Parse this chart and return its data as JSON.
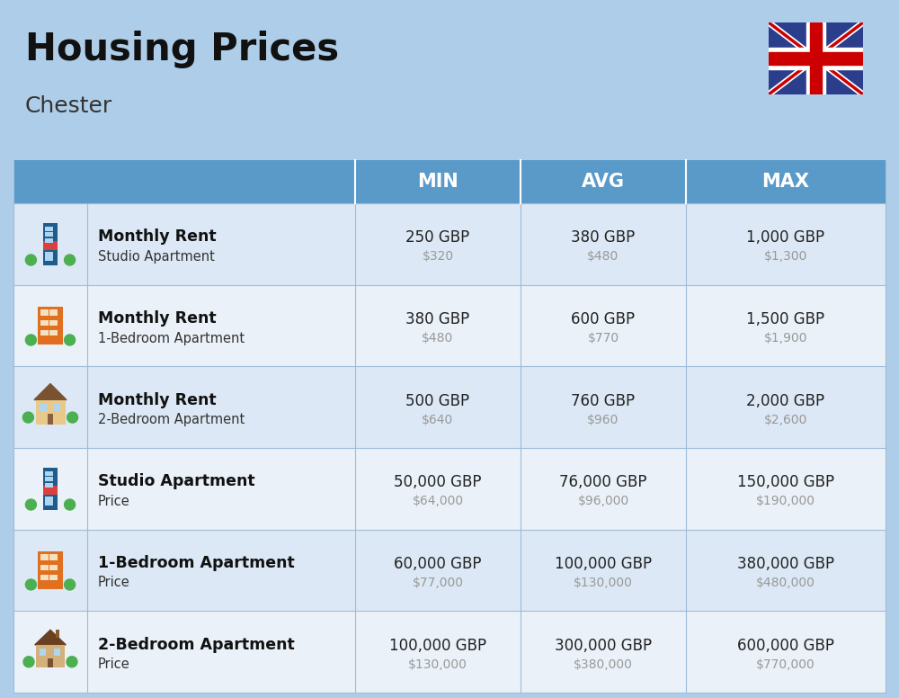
{
  "title": "Housing Prices",
  "subtitle": "Chester",
  "bg_color": "#aecde8",
  "header_bg": "#5a9ac9",
  "col_headers": [
    "MIN",
    "AVG",
    "MAX"
  ],
  "rows": [
    {
      "bold": "Monthly Rent",
      "normal": "Studio Apartment",
      "min_gbp": "250 GBP",
      "min_usd": "$320",
      "avg_gbp": "380 GBP",
      "avg_usd": "$480",
      "max_gbp": "1,000 GBP",
      "max_usd": "$1,300",
      "icon_type": "blue_tower"
    },
    {
      "bold": "Monthly Rent",
      "normal": "1-Bedroom Apartment",
      "min_gbp": "380 GBP",
      "min_usd": "$480",
      "avg_gbp": "600 GBP",
      "avg_usd": "$770",
      "max_gbp": "1,500 GBP",
      "max_usd": "$1,900",
      "icon_type": "orange_apt"
    },
    {
      "bold": "Monthly Rent",
      "normal": "2-Bedroom Apartment",
      "min_gbp": "500 GBP",
      "min_usd": "$640",
      "avg_gbp": "760 GBP",
      "avg_usd": "$960",
      "max_gbp": "2,000 GBP",
      "max_usd": "$2,600",
      "icon_type": "tan_house"
    },
    {
      "bold": "Studio Apartment",
      "normal": "Price",
      "min_gbp": "50,000 GBP",
      "min_usd": "$64,000",
      "avg_gbp": "76,000 GBP",
      "avg_usd": "$96,000",
      "max_gbp": "150,000 GBP",
      "max_usd": "$190,000",
      "icon_type": "blue_tower"
    },
    {
      "bold": "1-Bedroom Apartment",
      "normal": "Price",
      "min_gbp": "60,000 GBP",
      "min_usd": "$77,000",
      "avg_gbp": "100,000 GBP",
      "avg_usd": "$130,000",
      "max_gbp": "380,000 GBP",
      "max_usd": "$480,000",
      "icon_type": "orange_apt"
    },
    {
      "bold": "2-Bedroom Apartment",
      "normal": "Price",
      "min_gbp": "100,000 GBP",
      "min_usd": "$130,000",
      "avg_gbp": "300,000 GBP",
      "avg_usd": "$380,000",
      "max_gbp": "600,000 GBP",
      "max_usd": "$770,000",
      "icon_type": "brown_house"
    }
  ],
  "gbp_color": "#222222",
  "usd_color": "#999999",
  "row_colors": [
    "#dce8f5",
    "#eaf1f8"
  ],
  "divider_color": "#a0bcd8",
  "header_divider": "#ffffff"
}
